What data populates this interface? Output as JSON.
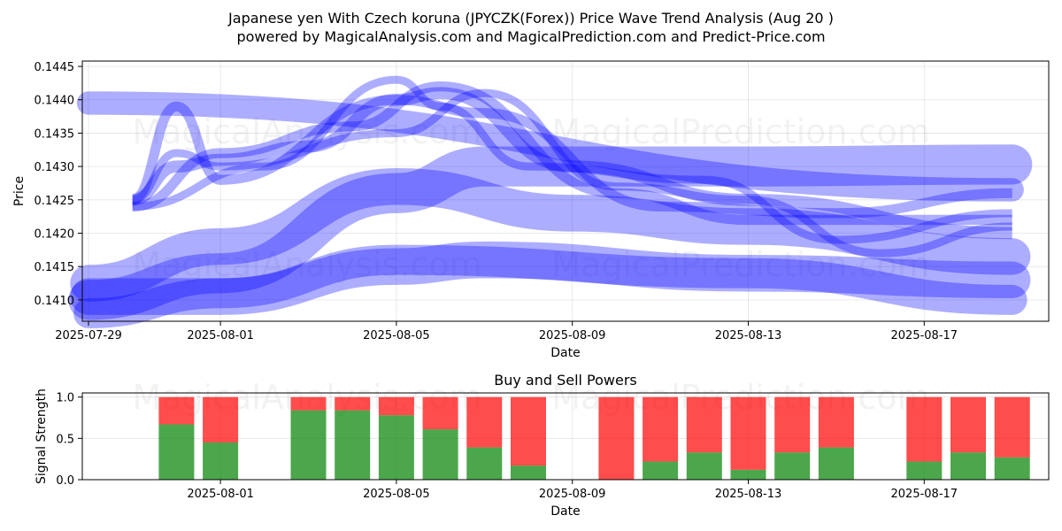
{
  "title_line1": "Japanese yen With Czech koruna (JPYCZK(Forex)) Price Wave Trend Analysis (Aug 20 )",
  "title_line2": "powered by MagicalAnalysis.com and MagicalPrediction.com and Predict-Price.com",
  "watermarks": [
    "MagicalAnalysis.com",
    "MagicalPrediction.com"
  ],
  "colors": {
    "wave": "#0000ff",
    "buy": "#008000",
    "sell": "#ff0000"
  },
  "chart_data": [
    {
      "type": "area",
      "title": "",
      "xlabel": "Date",
      "ylabel": "Price",
      "x_range": [
        "2025-07-29",
        "2025-08-20"
      ],
      "ylim": [
        0.14068,
        0.14458
      ],
      "x_ticks": [
        "2025-07-29",
        "2025-08-01",
        "2025-08-05",
        "2025-08-09",
        "2025-08-13",
        "2025-08-17"
      ],
      "y_ticks": [
        0.141,
        0.1415,
        0.142,
        0.1425,
        0.143,
        0.1435,
        0.144,
        0.1445
      ],
      "grid": true,
      "series": [
        {
          "band_width": 0.00035,
          "x": [
            "2025-07-29",
            "2025-08-19"
          ],
          "y": [
            0.14395,
            0.14265
          ]
        },
        {
          "band_width": 0.00055,
          "x": [
            "2025-07-29",
            "2025-08-01",
            "2025-08-05",
            "2025-08-09",
            "2025-08-13",
            "2025-08-19"
          ],
          "y": [
            0.14125,
            0.1418,
            0.1427,
            0.1423,
            0.1421,
            0.14165
          ]
        },
        {
          "band_width": 0.0006,
          "x": [
            "2025-07-29",
            "2025-08-01",
            "2025-08-05",
            "2025-08-07",
            "2025-08-13",
            "2025-08-19"
          ],
          "y": [
            0.141,
            0.1414,
            0.1426,
            0.143,
            0.143,
            0.14303
          ]
        },
        {
          "band_width": 0.00055,
          "x": [
            "2025-07-29",
            "2025-08-01",
            "2025-08-05",
            "2025-08-07",
            "2025-08-13",
            "2025-08-19"
          ],
          "y": [
            0.14105,
            0.14105,
            0.1415,
            0.1416,
            0.1414,
            0.1413
          ]
        },
        {
          "band_width": 0.00045,
          "x": [
            "2025-07-29",
            "2025-08-01",
            "2025-08-05",
            "2025-08-13",
            "2025-08-19"
          ],
          "y": [
            0.1408,
            0.1411,
            0.1416,
            0.1414,
            0.141
          ]
        },
        {
          "band_width": 0.00018,
          "x": [
            "2025-07-30",
            "2025-07-31",
            "2025-08-01",
            "2025-08-03",
            "2025-08-05",
            "2025-08-06",
            "2025-08-09",
            "2025-08-13",
            "2025-08-19"
          ],
          "y": [
            0.1425,
            0.143,
            0.1431,
            0.1433,
            0.144,
            0.1441,
            0.143,
            0.1425,
            0.142
          ]
        },
        {
          "band_width": 0.00015,
          "x": [
            "2025-07-30",
            "2025-08-01",
            "2025-08-04",
            "2025-08-06",
            "2025-08-10",
            "2025-08-13",
            "2025-08-19"
          ],
          "y": [
            0.1424,
            0.1432,
            0.1436,
            0.1442,
            0.1426,
            0.1422,
            0.1422
          ]
        },
        {
          "band_width": 0.00015,
          "x": [
            "2025-07-30",
            "2025-07-31",
            "2025-08-01",
            "2025-08-05",
            "2025-08-07",
            "2025-08-11",
            "2025-08-15",
            "2025-08-19"
          ],
          "y": [
            0.1425,
            0.1439,
            0.1428,
            0.144,
            0.1438,
            0.1424,
            0.1423,
            0.1426
          ]
        },
        {
          "band_width": 0.00012,
          "x": [
            "2025-07-30",
            "2025-08-02",
            "2025-08-05",
            "2025-08-06",
            "2025-08-08",
            "2025-08-12",
            "2025-08-15",
            "2025-08-19"
          ],
          "y": [
            0.1424,
            0.143,
            0.1443,
            0.1439,
            0.143,
            0.1428,
            0.1419,
            0.1423
          ]
        },
        {
          "band_width": 0.00012,
          "x": [
            "2025-07-30",
            "2025-07-31",
            "2025-08-01",
            "2025-08-05",
            "2025-08-07",
            "2025-08-10",
            "2025-08-13",
            "2025-08-16",
            "2025-08-19"
          ],
          "y": [
            0.1425,
            0.1432,
            0.143,
            0.1435,
            0.1441,
            0.1427,
            0.1425,
            0.1417,
            0.1421
          ]
        }
      ]
    },
    {
      "type": "bar",
      "stacked": true,
      "title": "Buy and Sell Powers",
      "xlabel": "",
      "ylabel": "Signal Strength",
      "ylim": [
        0,
        1.05
      ],
      "x_ticks": [
        "2025-08-01",
        "2025-08-05",
        "2025-08-09",
        "2025-08-13",
        "2025-08-17"
      ],
      "y_ticks": [
        0.0,
        0.5,
        1.0
      ],
      "grid": true,
      "categories": [
        "2025-07-31",
        "2025-08-01",
        "2025-08-03",
        "2025-08-04",
        "2025-08-05",
        "2025-08-06",
        "2025-08-07",
        "2025-08-08",
        "2025-08-10",
        "2025-08-11",
        "2025-08-12",
        "2025-08-13",
        "2025-08-14",
        "2025-08-15",
        "2025-08-17",
        "2025-08-18",
        "2025-08-19"
      ],
      "series": [
        {
          "name": "",
          "values": [
            0.67,
            0.45,
            0.84,
            0.84,
            0.78,
            0.61,
            0.39,
            0.17,
            0.0,
            0.22,
            0.33,
            0.12,
            0.33,
            0.39,
            0.22,
            0.33,
            0.27
          ]
        },
        {
          "name": "",
          "values": [
            0.33,
            0.55,
            0.16,
            0.16,
            0.22,
            0.39,
            0.61,
            0.83,
            1.0,
            0.78,
            0.67,
            0.88,
            0.67,
            0.61,
            0.78,
            0.67,
            0.73
          ]
        }
      ]
    }
  ],
  "x_label_bottom": "Date"
}
